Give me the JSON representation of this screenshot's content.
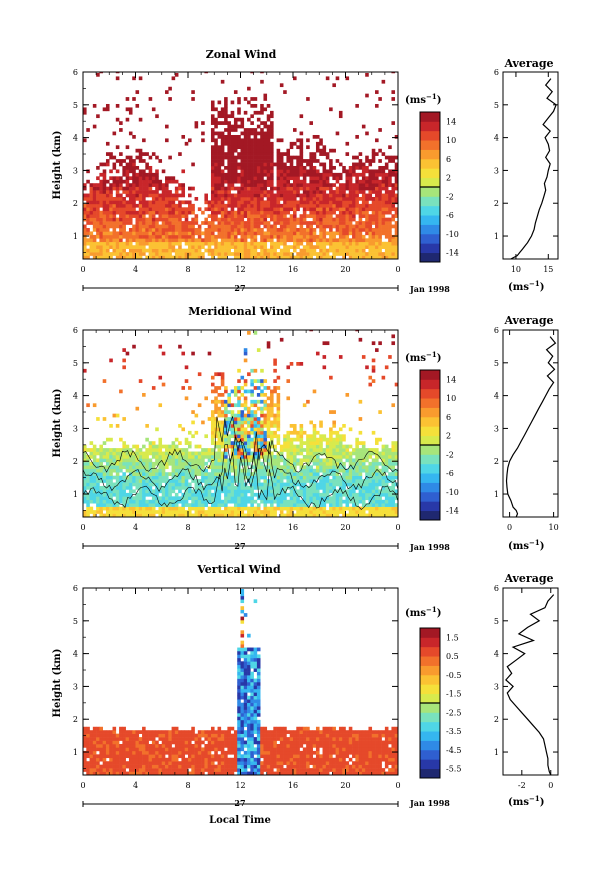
{
  "chart_data": [
    {
      "type": "heatmap",
      "id": "zonal",
      "title": "Zonal Wind",
      "ylabel": "Height (km)",
      "yticks": [
        "1",
        "2",
        "3",
        "4",
        "5",
        "6"
      ],
      "ylim": [
        0.3,
        6
      ],
      "xticks": [
        "0",
        "4",
        "8",
        "12",
        "16",
        "20",
        "0"
      ],
      "xlim": [
        0,
        24
      ],
      "date_day": "27",
      "date_month": "Jan 1998",
      "colorbar": {
        "unit": "(ms",
        "unit_exp": "−1",
        "unit_close": ")",
        "ticks": [
          "14",
          "10",
          "6",
          "2",
          "-2",
          "-6",
          "-10",
          "-14"
        ],
        "range": [
          -16,
          16
        ]
      },
      "average": {
        "title": "Average",
        "xlabel": "(ms",
        "xlabel_exp": "−1",
        "xlabel_close": ")",
        "xticks": [
          "10",
          "15"
        ],
        "xtick_values": [
          10,
          15
        ],
        "xlim": [
          8,
          16.5
        ],
        "profile_height": [
          0.3,
          0.4,
          0.5,
          0.6,
          0.7,
          0.8,
          0.9,
          1.0,
          1.2,
          1.4,
          1.6,
          1.8,
          2.0,
          2.2,
          2.4,
          2.6,
          2.8,
          3.0,
          3.2,
          3.4,
          3.6,
          3.8,
          4.0,
          4.2,
          4.4,
          4.6,
          4.8,
          5.0,
          5.2,
          5.4,
          5.6,
          5.8
        ],
        "profile_value": [
          9.2,
          10.2,
          10.6,
          11.0,
          11.4,
          11.8,
          12.1,
          12.4,
          12.8,
          13.0,
          13.3,
          13.6,
          14.0,
          14.3,
          14.6,
          14.4,
          14.8,
          15.0,
          15.3,
          14.6,
          15.2,
          15.0,
          14.5,
          15.3,
          14.2,
          15.0,
          15.8,
          16.2,
          14.8,
          15.6,
          14.6,
          15.4
        ]
      }
    },
    {
      "type": "heatmap",
      "id": "meridional",
      "title": "Meridional Wind",
      "ylabel": "Height (km)",
      "yticks": [
        "1",
        "2",
        "3",
        "4",
        "5",
        "6"
      ],
      "ylim": [
        0.3,
        6
      ],
      "xticks": [
        "0",
        "4",
        "8",
        "12",
        "16",
        "20",
        "0"
      ],
      "xlim": [
        0,
        24
      ],
      "date_day": "27",
      "date_month": "Jan 1998",
      "colorbar": {
        "unit": "(ms",
        "unit_exp": "−1",
        "unit_close": ")",
        "ticks": [
          "14",
          "10",
          "6",
          "2",
          "-2",
          "-6",
          "-10",
          "-14"
        ],
        "range": [
          -16,
          16
        ]
      },
      "average": {
        "title": "Average",
        "xlabel": "(ms",
        "xlabel_exp": "−1",
        "xlabel_close": ")",
        "xticks": [
          "0",
          "10"
        ],
        "xtick_values": [
          0,
          10
        ],
        "xlim": [
          -1.5,
          11
        ],
        "profile_height": [
          0.3,
          0.4,
          0.5,
          0.6,
          0.8,
          1.0,
          1.2,
          1.4,
          1.6,
          1.8,
          2.0,
          2.2,
          2.4,
          2.6,
          2.8,
          3.0,
          3.2,
          3.4,
          3.6,
          3.8,
          4.0,
          4.2,
          4.4,
          4.6,
          4.8,
          5.0,
          5.2,
          5.4,
          5.6,
          5.8
        ],
        "profile_value": [
          1.5,
          1.8,
          1.5,
          0.8,
          0.3,
          -0.4,
          -0.6,
          -0.7,
          -0.6,
          -0.4,
          0.0,
          0.8,
          1.8,
          2.6,
          3.4,
          4.2,
          5.0,
          5.8,
          6.6,
          7.4,
          8.2,
          9.0,
          10.0,
          8.6,
          10.2,
          8.8,
          9.8,
          8.4,
          10.4,
          9.2
        ]
      }
    },
    {
      "type": "heatmap",
      "id": "vertical",
      "title": "Vertical Wind",
      "ylabel": "Height (km)",
      "yticks": [
        "1",
        "2",
        "3",
        "4",
        "5",
        "6"
      ],
      "ylim": [
        0.3,
        6
      ],
      "xticks": [
        "0",
        "4",
        "8",
        "12",
        "16",
        "20",
        "0"
      ],
      "xlim": [
        0,
        24
      ],
      "date_day": "27",
      "date_month": "Jan 1998",
      "xlabel": "Local Time",
      "colorbar": {
        "unit": "(ms",
        "unit_exp": "−1",
        "unit_close": ")",
        "ticks": [
          "1.5",
          "0.5",
          "-0.5",
          "-1.5",
          "-2.5",
          "-3.5",
          "-4.5",
          "-5.5"
        ],
        "range": [
          -6.0,
          2.0
        ]
      },
      "average": {
        "title": "Average",
        "xlabel": "(ms",
        "xlabel_exp": "−1",
        "xlabel_close": ")",
        "xticks": [
          "-2",
          "0"
        ],
        "xtick_values": [
          -2,
          0
        ],
        "xlim": [
          -3.3,
          0.5
        ],
        "profile_height": [
          0.3,
          0.4,
          0.6,
          0.8,
          1.0,
          1.2,
          1.4,
          1.6,
          1.8,
          2.0,
          2.2,
          2.4,
          2.6,
          2.8,
          3.0,
          3.2,
          3.4,
          3.6,
          3.8,
          4.0,
          4.2,
          4.4,
          4.6,
          4.8,
          5.0,
          5.2,
          5.4,
          5.6,
          5.8
        ],
        "profile_value": [
          0.0,
          -0.1,
          -0.2,
          -0.2,
          -0.3,
          -0.4,
          -0.5,
          -0.8,
          -1.2,
          -1.6,
          -2.0,
          -2.4,
          -2.8,
          -3.0,
          -2.6,
          -3.1,
          -2.7,
          -3.0,
          -2.4,
          -1.8,
          -2.6,
          -1.2,
          -2.2,
          -1.6,
          -0.8,
          -1.4,
          -0.4,
          -0.2,
          0.2
        ]
      }
    }
  ]
}
